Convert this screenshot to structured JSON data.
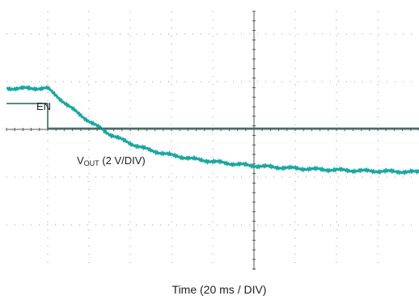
{
  "chart_data": {
    "type": "line",
    "xlabel": "Time (20 ms / DIV)",
    "grid": true,
    "colors": {
      "vout": "#1aa7a0",
      "en": "#2e6e64",
      "grid": "#9a9a9a",
      "axis": "#555555"
    },
    "annotations": {
      "en_label": "EN",
      "vout_label_v": "V",
      "vout_label_sub": "OUT",
      "vout_label_rest": " (2 V/DIV)"
    },
    "series": [
      {
        "key": "vout",
        "x": [
          0,
          20,
          30,
          40,
          50,
          60,
          70,
          80,
          90,
          100,
          110,
          120,
          130,
          140,
          150,
          160,
          170,
          180,
          190,
          200
        ],
        "y": [
          1.75,
          1.75,
          1.0,
          0.35,
          -0.2,
          -0.6,
          -0.9,
          -1.1,
          -1.25,
          -1.37,
          -1.47,
          -1.55,
          -1.61,
          -1.66,
          -1.7,
          -1.73,
          -1.76,
          -1.78,
          -1.8,
          -1.82
        ]
      },
      {
        "key": "en",
        "x": [
          0,
          20,
          20,
          200
        ],
        "y": [
          1.1,
          1.1,
          0.05,
          0.05
        ]
      }
    ]
  }
}
